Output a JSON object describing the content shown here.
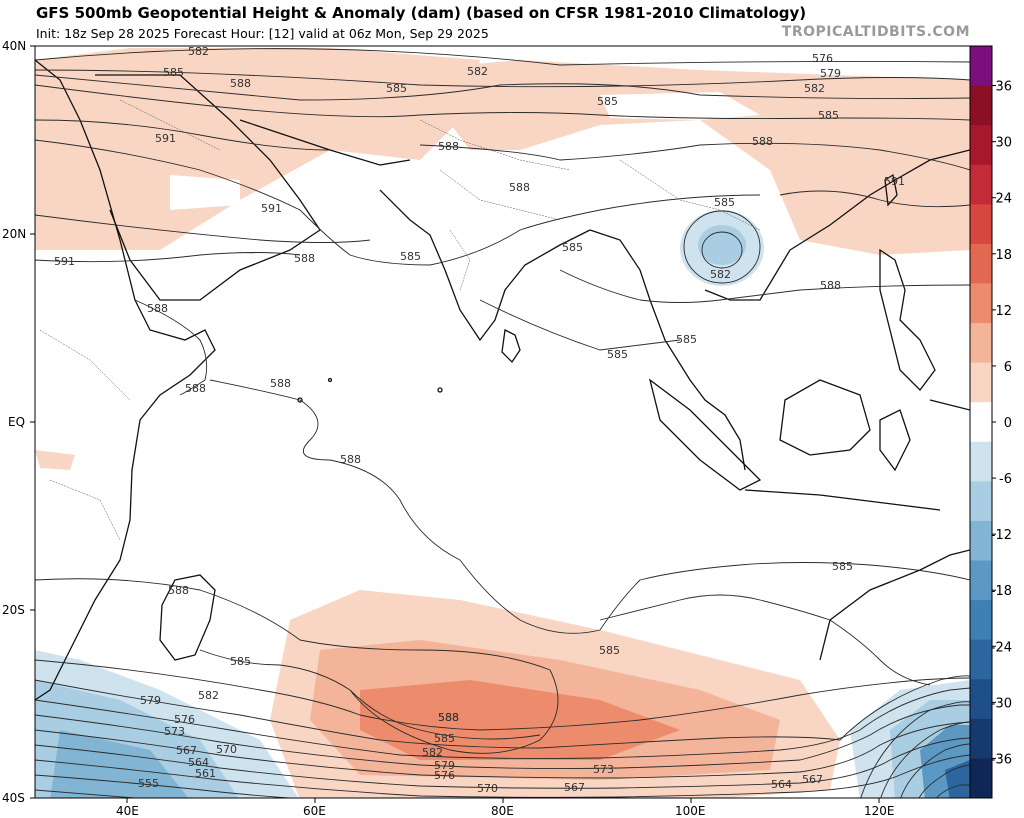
{
  "header": {
    "title": "GFS 500mb Geopotential Height & Anomaly (dam) (based on CFSR 1981-2010 Climatology)",
    "subtitle": "Init: 18z Sep 28 2025   Forecast Hour: [12]   valid at 06z Mon, Sep 29 2025",
    "brand": "TROPICALTIDBITS.COM"
  },
  "map": {
    "lat_labels": [
      "40N",
      "20N",
      "EQ",
      "20S",
      "40S"
    ],
    "lon_labels": [
      "40E",
      "60E",
      "80E",
      "100E",
      "120E"
    ],
    "contour_labels": [
      {
        "text": "582"
      },
      {
        "text": "585"
      },
      {
        "text": "588"
      },
      {
        "text": "591"
      },
      {
        "text": "582"
      },
      {
        "text": "585"
      },
      {
        "text": "585"
      },
      {
        "text": "588"
      },
      {
        "text": "576"
      },
      {
        "text": "579"
      },
      {
        "text": "582"
      },
      {
        "text": "585"
      },
      {
        "text": "588"
      },
      {
        "text": "591"
      },
      {
        "text": "588"
      },
      {
        "text": "591"
      },
      {
        "text": "588"
      },
      {
        "text": "585"
      },
      {
        "text": "591"
      },
      {
        "text": "585"
      },
      {
        "text": "585"
      },
      {
        "text": "582"
      },
      {
        "text": "588"
      },
      {
        "text": "588"
      },
      {
        "text": "585"
      },
      {
        "text": "585"
      },
      {
        "text": "588"
      },
      {
        "text": "588"
      },
      {
        "text": "588"
      },
      {
        "text": "588"
      },
      {
        "text": "585"
      },
      {
        "text": "588"
      },
      {
        "text": "585"
      },
      {
        "text": "585"
      },
      {
        "text": "582"
      },
      {
        "text": "579"
      },
      {
        "text": "576"
      },
      {
        "text": "573"
      },
      {
        "text": "567"
      },
      {
        "text": "570"
      },
      {
        "text": "564"
      },
      {
        "text": "561"
      },
      {
        "text": "555"
      },
      {
        "text": "588"
      },
      {
        "text": "585"
      },
      {
        "text": "582"
      },
      {
        "text": "579"
      },
      {
        "text": "576"
      },
      {
        "text": "573"
      },
      {
        "text": "570"
      },
      {
        "text": "567"
      },
      {
        "text": "567"
      },
      {
        "text": "564"
      }
    ]
  },
  "colorbar": {
    "ticks": [
      "36",
      "30",
      "24",
      "18",
      "12",
      "6",
      "0",
      "-6",
      "-12",
      "-18",
      "-24",
      "-30",
      "-36"
    ],
    "colors": [
      "#7b0f7b",
      "#8b1025",
      "#a8182c",
      "#c32b37",
      "#d6473f",
      "#e26852",
      "#ec8c6d",
      "#f4b49a",
      "#f9d5c4",
      "#ffffff",
      "#cfe3ef",
      "#a9cde3",
      "#82b4d4",
      "#5b99c4",
      "#3f7fb4",
      "#2d669f",
      "#1f4f88",
      "#163970",
      "#0f2657"
    ]
  }
}
